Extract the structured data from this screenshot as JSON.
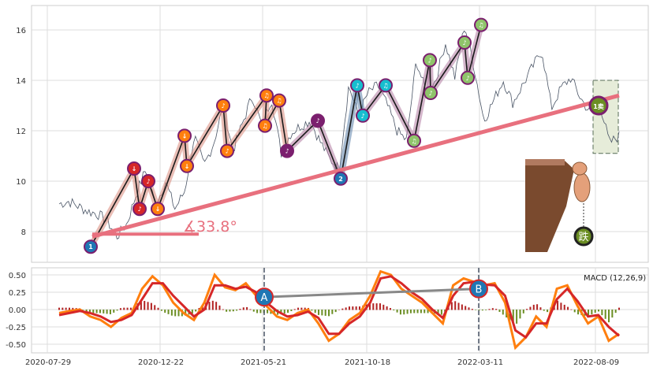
{
  "chart_data": [
    {
      "type": "line",
      "panel": "price",
      "x_tick_labels": [
        "2020-07-29",
        "2020-12-22",
        "2021-05-21",
        "2021-10-18",
        "2022-03-11",
        "2022-08-09"
      ],
      "y_ticks": [
        8,
        10,
        12,
        14,
        16
      ],
      "ylim": [
        6.8,
        16.9
      ],
      "grid": true,
      "price_series": {
        "name": "",
        "color": "#4a5566",
        "values": [
          9.1,
          9.2,
          9.0,
          8.8,
          8.7,
          8.4,
          7.8,
          8.3,
          9.5,
          10.5,
          9.0,
          10.0,
          8.9,
          9.6,
          11.8,
          10.6,
          11.5,
          13.0,
          11.2,
          12.3,
          13.4,
          12.2,
          13.3,
          11.1,
          11.9,
          12.2,
          12.4,
          11.6,
          10.9,
          10.5,
          13.8,
          12.6,
          13.5,
          13.8,
          13.0,
          12.0,
          11.6,
          14.8,
          13.5,
          14.0,
          15.5,
          14.1,
          16.2,
          14.5,
          12.4,
          13.2,
          14.0,
          13.1,
          13.8,
          14.5,
          15.2,
          12.9,
          13.7,
          14.1,
          13.3,
          12.7,
          13.1,
          11.5,
          11.8
        ]
      },
      "trend_line": {
        "from": [
          7.8
        ],
        "to": [
          13.4
        ],
        "color": "#e8707e"
      },
      "angle_annotation": "∡33.8°",
      "wave_points": [
        {
          "label": "1",
          "value": 7.4,
          "color": "#1f77b4"
        },
        {
          "label": "↓",
          "value": 10.5,
          "color": "#d62728"
        },
        {
          "label": "♪",
          "value": 8.9,
          "color": "#d62728"
        },
        {
          "label": "♪",
          "value": 10.0,
          "color": "#d62728"
        },
        {
          "label": "↓",
          "value": 8.9,
          "color": "#ff7f0e"
        },
        {
          "label": "↓",
          "value": 11.8,
          "color": "#ff7f0e"
        },
        {
          "label": "↓",
          "value": 10.6,
          "color": "#ff7f0e"
        },
        {
          "label": "♪",
          "value": 13.0,
          "color": "#ff7f0e"
        },
        {
          "label": "♪",
          "value": 11.2,
          "color": "#ff7f0e"
        },
        {
          "label": "♫",
          "value": 13.4,
          "color": "#ff7f0e"
        },
        {
          "label": "♫",
          "value": 12.2,
          "color": "#ff7f0e"
        },
        {
          "label": "♫",
          "value": 13.2,
          "color": "#ff7f0e"
        },
        {
          "label": "♪",
          "value": 11.2,
          "color": "#7b1f6e"
        },
        {
          "label": "♪",
          "value": 12.4,
          "color": "#7b1f6e"
        },
        {
          "label": "2",
          "value": 10.1,
          "color": "#1f77b4"
        },
        {
          "label": "♪",
          "value": 13.8,
          "color": "#17becf"
        },
        {
          "label": "♪",
          "value": 12.6,
          "color": "#17becf"
        },
        {
          "label": "♫",
          "value": 13.8,
          "color": "#17becf"
        },
        {
          "label": "♫",
          "value": 11.6,
          "color": "#8fc46a"
        },
        {
          "label": "♪",
          "value": 14.8,
          "color": "#8fc46a"
        },
        {
          "label": "♪",
          "value": 13.5,
          "color": "#8fc46a"
        },
        {
          "label": "♪",
          "value": 15.5,
          "color": "#8fc46a"
        },
        {
          "label": "♪",
          "value": 14.1,
          "color": "#8fc46a"
        },
        {
          "label": "♫",
          "value": 16.2,
          "color": "#8fc46a"
        }
      ],
      "sell_marker": {
        "label": "1卖",
        "value": 13.0
      },
      "fall_marker": {
        "label": "跌"
      }
    },
    {
      "type": "line",
      "panel": "macd",
      "legend": "MACD (12,26,9)",
      "y_ticks": [
        0.5,
        0.25,
        0.0,
        -0.25,
        -0.5
      ],
      "ylim": [
        -0.58,
        0.6
      ],
      "dif": [
        -0.05,
        -0.02,
        0.0,
        -0.1,
        -0.15,
        -0.25,
        -0.12,
        -0.05,
        0.3,
        0.48,
        0.35,
        0.1,
        -0.05,
        -0.15,
        0.1,
        0.5,
        0.32,
        0.28,
        0.38,
        0.2,
        0.05,
        -0.1,
        -0.15,
        -0.05,
        0.0,
        -0.2,
        -0.45,
        -0.35,
        -0.15,
        -0.05,
        0.2,
        0.55,
        0.5,
        0.3,
        0.2,
        0.1,
        -0.05,
        -0.2,
        0.35,
        0.45,
        0.4,
        0.35,
        0.38,
        0.1,
        -0.55,
        -0.4,
        -0.1,
        -0.25,
        0.3,
        0.35,
        0.05,
        -0.2,
        -0.1,
        -0.45,
        -0.35
      ],
      "dea": [
        -0.08,
        -0.05,
        -0.02,
        -0.05,
        -0.1,
        -0.18,
        -0.15,
        -0.08,
        0.15,
        0.38,
        0.38,
        0.2,
        0.05,
        -0.1,
        0.0,
        0.35,
        0.35,
        0.3,
        0.33,
        0.25,
        0.1,
        -0.02,
        -0.1,
        -0.08,
        -0.03,
        -0.12,
        -0.35,
        -0.35,
        -0.2,
        -0.1,
        0.1,
        0.45,
        0.48,
        0.38,
        0.25,
        0.15,
        0.0,
        -0.12,
        0.2,
        0.38,
        0.4,
        0.36,
        0.35,
        0.2,
        -0.3,
        -0.4,
        -0.2,
        -0.2,
        0.15,
        0.3,
        0.12,
        -0.1,
        -0.08,
        -0.25,
        -0.38
      ],
      "markers": [
        {
          "label": "A",
          "value": 0.18
        },
        {
          "label": "B",
          "value": 0.3
        }
      ]
    }
  ]
}
